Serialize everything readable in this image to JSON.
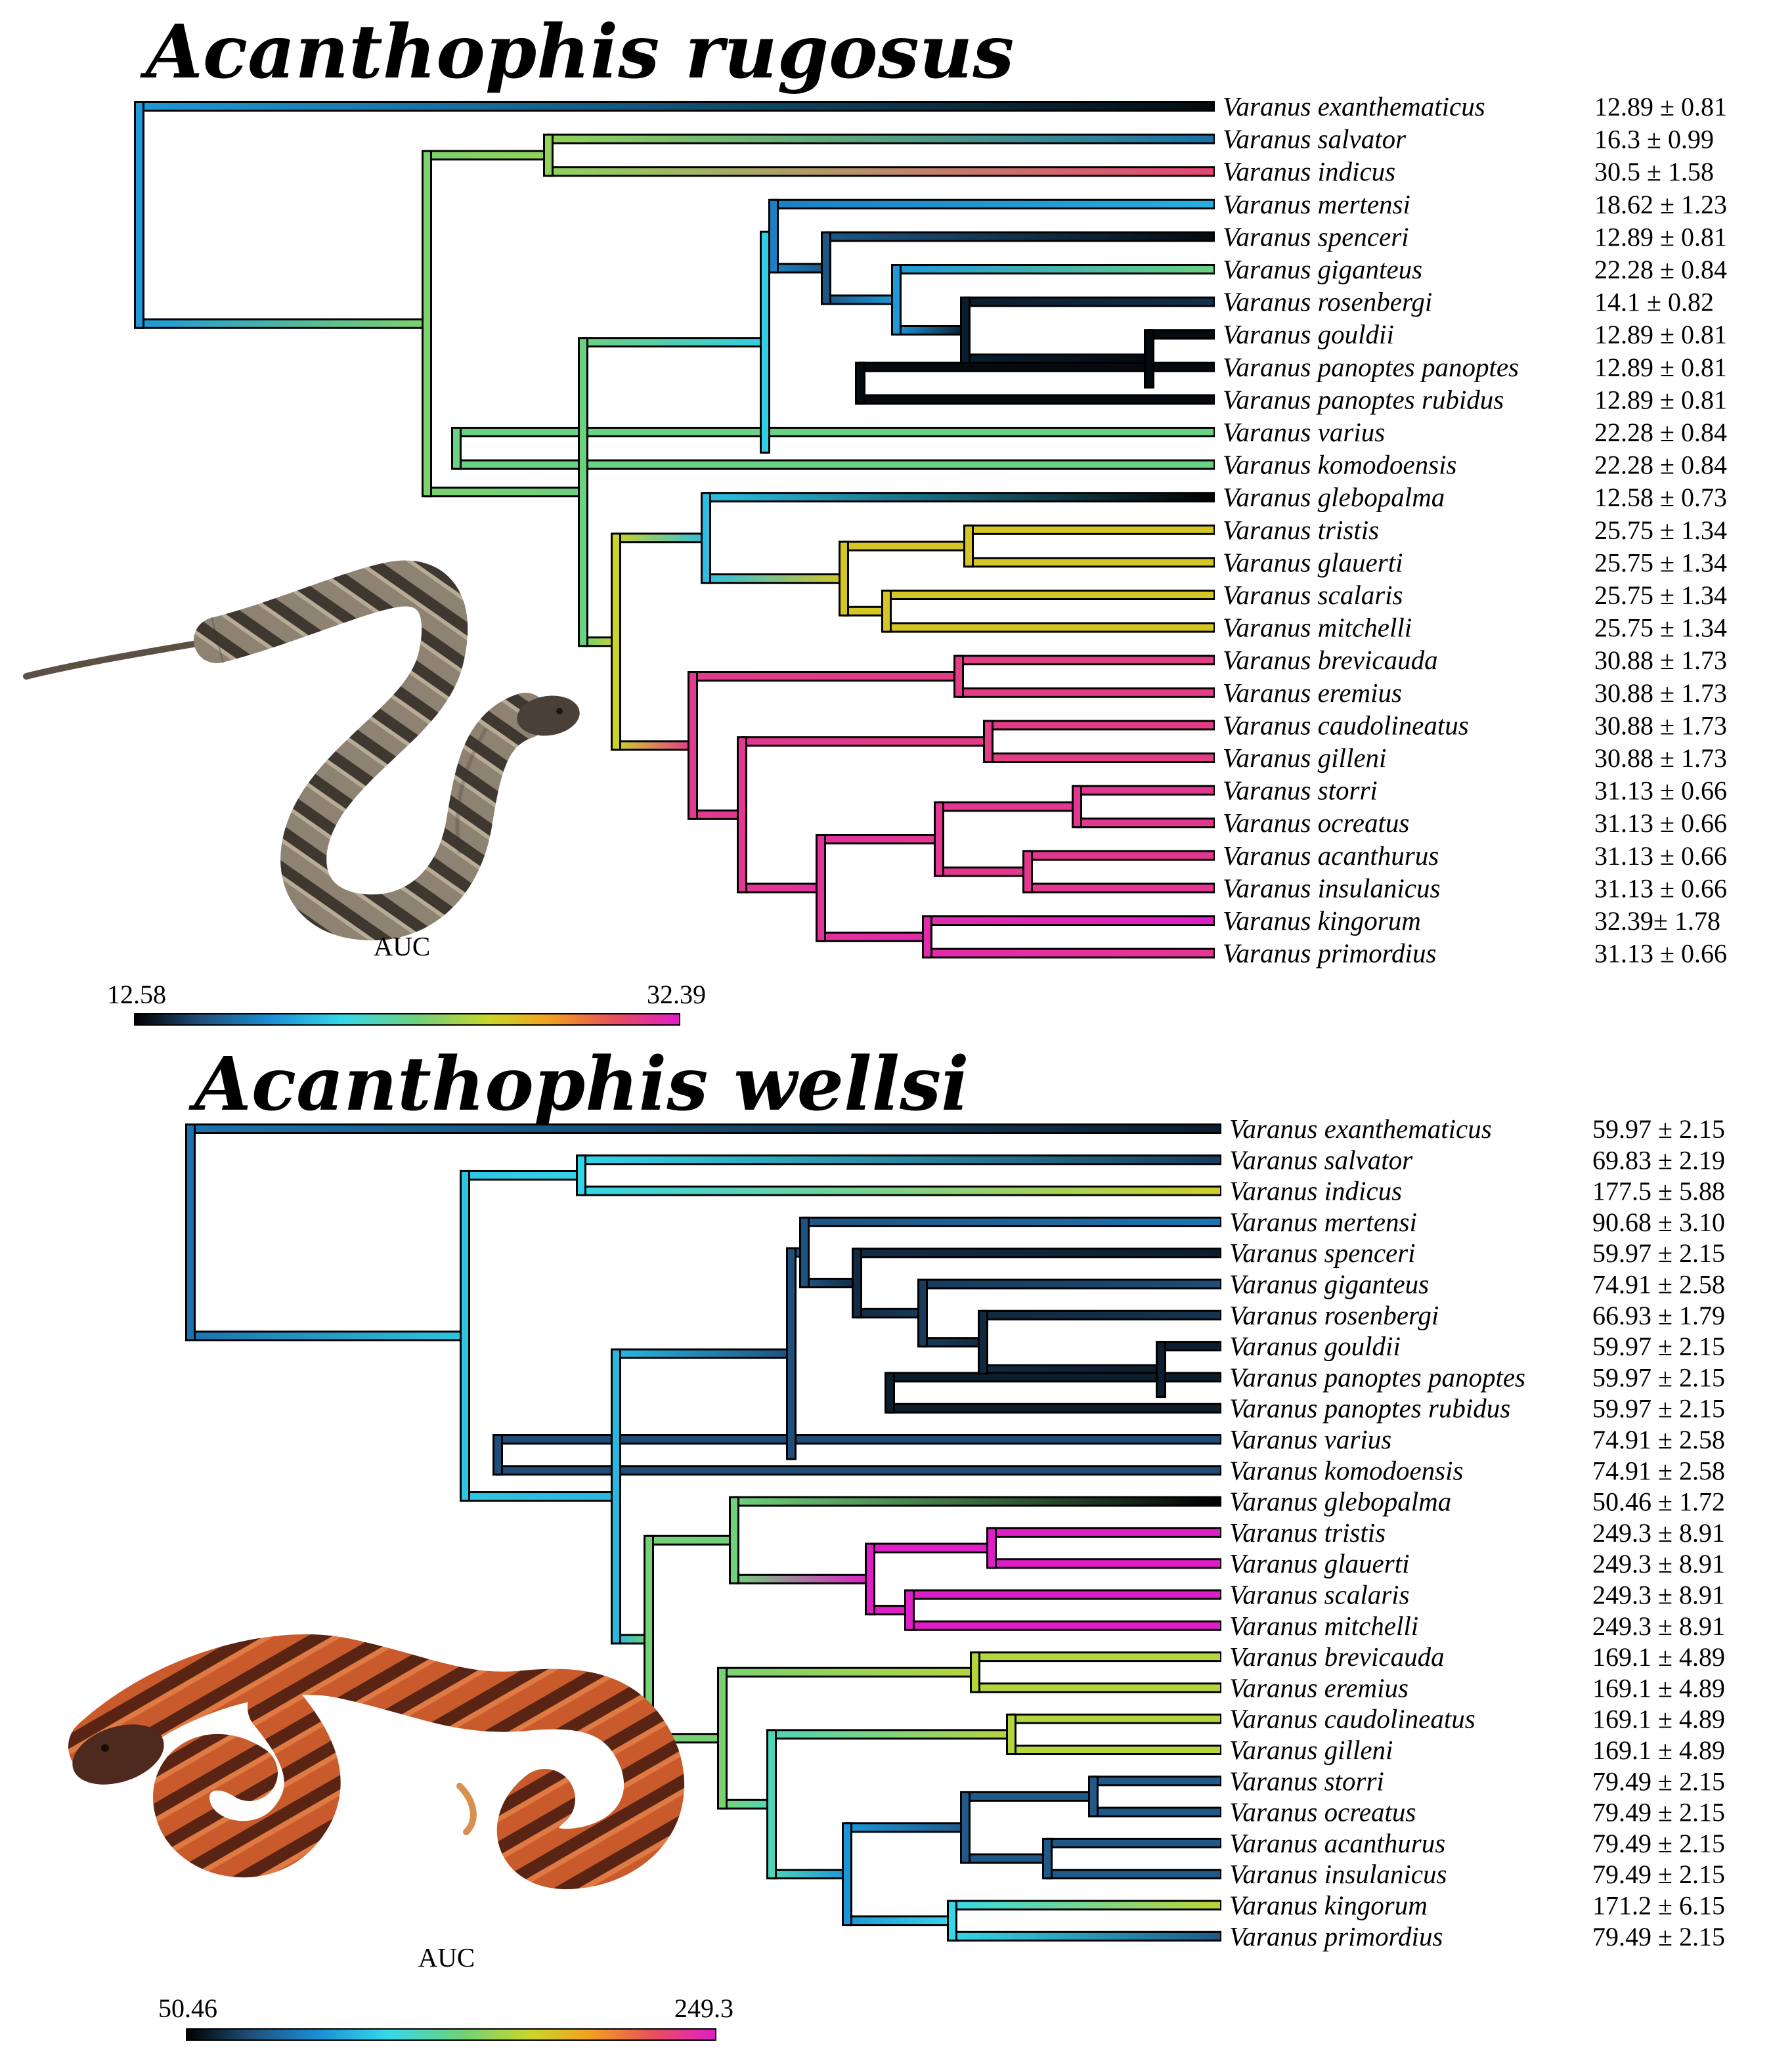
{
  "palette": [
    "#000000",
    "#1f4e79",
    "#1a8fd6",
    "#35d8e8",
    "#6fd17a",
    "#c9d62a",
    "#f2a21f",
    "#e8505b",
    "#e01ec8"
  ],
  "panels": [
    {
      "id": "rugosus",
      "title": "Acanthophis rugosus",
      "auc_label": "AUC",
      "scale_min": "12.58",
      "scale_max": "32.39",
      "snake_color": "rugosus-grey-banded",
      "taxa": [
        {
          "name": "Varanus exanthematicus",
          "value": "12.89 ± 0.81"
        },
        {
          "name": "Varanus salvator",
          "value": "16.3 ± 0.99"
        },
        {
          "name": "Varanus indicus",
          "value": "30.5 ± 1.58"
        },
        {
          "name": "Varanus mertensi",
          "value": "18.62 ± 1.23"
        },
        {
          "name": "Varanus spenceri",
          "value": "12.89 ± 0.81"
        },
        {
          "name": "Varanus giganteus",
          "value": "22.28 ± 0.84"
        },
        {
          "name": "Varanus rosenbergi",
          "value": "14.1 ± 0.82"
        },
        {
          "name": "Varanus gouldii",
          "value": "12.89 ± 0.81"
        },
        {
          "name": "Varanus panoptes panoptes",
          "value": "12.89 ± 0.81"
        },
        {
          "name": "Varanus panoptes rubidus",
          "value": "12.89 ± 0.81"
        },
        {
          "name": "Varanus varius",
          "value": "22.28 ± 0.84"
        },
        {
          "name": "Varanus komodoensis",
          "value": "22.28 ± 0.84"
        },
        {
          "name": "Varanus glebopalma",
          "value": "12.58 ± 0.73"
        },
        {
          "name": "Varanus tristis",
          "value": "25.75 ± 1.34"
        },
        {
          "name": "Varanus glauerti",
          "value": "25.75 ± 1.34"
        },
        {
          "name": "Varanus scalaris",
          "value": "25.75 ± 1.34"
        },
        {
          "name": "Varanus mitchelli",
          "value": "25.75 ± 1.34"
        },
        {
          "name": "Varanus brevicauda",
          "value": "30.88 ± 1.73"
        },
        {
          "name": "Varanus eremius",
          "value": "30.88 ± 1.73"
        },
        {
          "name": "Varanus caudolineatus",
          "value": "30.88 ± 1.73"
        },
        {
          "name": "Varanus gilleni",
          "value": "30.88 ± 1.73"
        },
        {
          "name": "Varanus storri",
          "value": "31.13 ± 0.66"
        },
        {
          "name": "Varanus ocreatus",
          "value": "31.13 ± 0.66"
        },
        {
          "name": "Varanus acanthurus",
          "value": "31.13 ± 0.66"
        },
        {
          "name": "Varanus insulanicus",
          "value": "31.13 ± 0.66"
        },
        {
          "name": "Varanus kingorum",
          "value": "32.39± 1.78"
        },
        {
          "name": "Varanus primordius",
          "value": "31.13 ± 0.66"
        }
      ]
    },
    {
      "id": "wellsi",
      "title": "Acanthophis wellsi",
      "auc_label": "AUC",
      "scale_min": "50.46",
      "scale_max": "249.3",
      "snake_color": "wellsi-orange-banded",
      "taxa": [
        {
          "name": "Varanus exanthematicus",
          "value": "59.97 ± 2.15"
        },
        {
          "name": "Varanus salvator",
          "value": "69.83 ± 2.19"
        },
        {
          "name": "Varanus indicus",
          "value": "177.5 ± 5.88"
        },
        {
          "name": "Varanus mertensi",
          "value": "90.68 ± 3.10"
        },
        {
          "name": "Varanus spenceri",
          "value": "59.97 ± 2.15"
        },
        {
          "name": "Varanus giganteus",
          "value": "74.91 ± 2.58"
        },
        {
          "name": "Varanus rosenbergi",
          "value": "66.93 ± 1.79"
        },
        {
          "name": "Varanus gouldii",
          "value": "59.97 ± 2.15"
        },
        {
          "name": "Varanus panoptes panoptes",
          "value": "59.97 ± 2.15"
        },
        {
          "name": "Varanus panoptes rubidus",
          "value": "59.97 ± 2.15"
        },
        {
          "name": "Varanus varius",
          "value": "74.91 ± 2.58"
        },
        {
          "name": "Varanus komodoensis",
          "value": "74.91 ± 2.58"
        },
        {
          "name": "Varanus glebopalma",
          "value": "50.46 ± 1.72"
        },
        {
          "name": "Varanus tristis",
          "value": "249.3 ± 8.91"
        },
        {
          "name": "Varanus glauerti",
          "value": "249.3 ± 8.91"
        },
        {
          "name": "Varanus scalaris",
          "value": "249.3 ± 8.91"
        },
        {
          "name": "Varanus mitchelli",
          "value": "249.3 ± 8.91"
        },
        {
          "name": "Varanus brevicauda",
          "value": "169.1 ± 4.89"
        },
        {
          "name": "Varanus eremius",
          "value": "169.1 ± 4.89"
        },
        {
          "name": "Varanus caudolineatus",
          "value": "169.1 ± 4.89"
        },
        {
          "name": "Varanus gilleni",
          "value": "169.1 ± 4.89"
        },
        {
          "name": "Varanus storri",
          "value": "79.49 ± 2.15"
        },
        {
          "name": "Varanus ocreatus",
          "value": "79.49 ± 2.15"
        },
        {
          "name": "Varanus acanthurus",
          "value": "79.49 ± 2.15"
        },
        {
          "name": "Varanus insulanicus",
          "value": "79.49 ± 2.15"
        },
        {
          "name": "Varanus kingorum",
          "value": "171.2 ± 6.15"
        },
        {
          "name": "Varanus primordius",
          "value": "79.49 ± 2.15"
        }
      ]
    }
  ]
}
